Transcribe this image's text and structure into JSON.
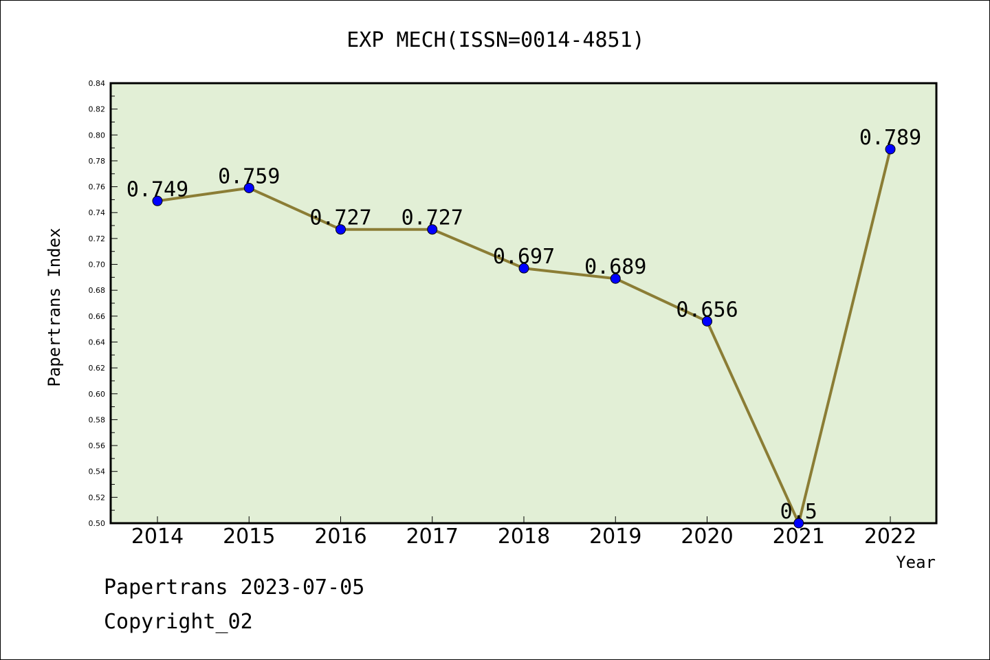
{
  "chart_data": {
    "type": "line",
    "title": "EXP MECH(ISSN=0014-4851)",
    "xlabel": "Year",
    "ylabel": "Papertrans Index",
    "categories": [
      "2014",
      "2015",
      "2016",
      "2017",
      "2018",
      "2019",
      "2020",
      "2021",
      "2022"
    ],
    "series": [
      {
        "values": [
          0.749,
          0.759,
          0.727,
          0.727,
          0.697,
          0.689,
          0.656,
          0.5,
          0.789
        ]
      }
    ],
    "data_labels": [
      "0.749",
      "0.759",
      "0.727",
      "0.727",
      "0.697",
      "0.689",
      "0.656",
      "0.5",
      "0.789"
    ],
    "ylim": [
      0.5,
      0.84
    ],
    "yticks": [
      "0.50",
      "0.52",
      "0.54",
      "0.56",
      "0.58",
      "0.60",
      "0.62",
      "0.64",
      "0.66",
      "0.68",
      "0.70",
      "0.72",
      "0.74",
      "0.76",
      "0.78",
      "0.80",
      "0.82",
      "0.84"
    ],
    "grid": false,
    "colors": {
      "plot_background": "#e2efd6",
      "line": "#8b7d35",
      "marker": "#0000ff"
    }
  },
  "footer": {
    "date_text": "Papertrans 2023-07-05",
    "copyright_text": "Copyright_02"
  }
}
